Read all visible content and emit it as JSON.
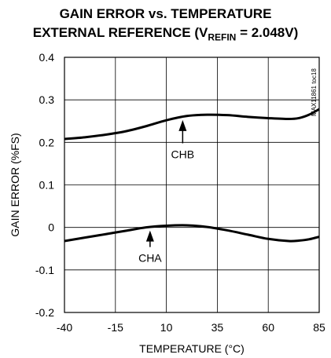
{
  "title_line1": "GAIN ERROR vs. TEMPERATURE",
  "title_line2_pre": "EXTERNAL REFERENCE (V",
  "title_line2_sub": "REFIN",
  "title_line2_post": " = 2.048V)",
  "part_id": "MAX11861 toc18",
  "chart_data": {
    "type": "line",
    "xlabel": "TEMPERATURE (°C)",
    "ylabel": "GAIN ERROR (%FS)",
    "xlim": [
      -40,
      85
    ],
    "ylim": [
      -0.2,
      0.4
    ],
    "xticks": [
      -40,
      -15,
      10,
      35,
      60,
      85
    ],
    "yticks": [
      -0.2,
      -0.1,
      0,
      0.1,
      0.2,
      0.3,
      0.4
    ],
    "ytick_labels": [
      "-0.2",
      "-0.1",
      "0",
      "0.1",
      "0.2",
      "0.3",
      "0.4"
    ],
    "grid": true,
    "series": [
      {
        "name": "CHB",
        "x": [
          -40,
          -30,
          -20,
          -10,
          0,
          10,
          20,
          30,
          40,
          50,
          60,
          70,
          75,
          80,
          85
        ],
        "y": [
          0.208,
          0.212,
          0.218,
          0.226,
          0.238,
          0.252,
          0.262,
          0.265,
          0.264,
          0.26,
          0.257,
          0.255,
          0.257,
          0.265,
          0.278
        ]
      },
      {
        "name": "CHA",
        "x": [
          -40,
          -30,
          -20,
          -10,
          0,
          10,
          20,
          30,
          40,
          50,
          60,
          70,
          75,
          80,
          85
        ],
        "y": [
          -0.032,
          -0.024,
          -0.016,
          -0.008,
          0.0,
          0.004,
          0.005,
          0.001,
          -0.007,
          -0.017,
          -0.027,
          -0.032,
          -0.031,
          -0.028,
          -0.022
        ]
      }
    ],
    "annotations": [
      {
        "text": "CHB",
        "x": 18,
        "y": 0.26,
        "label_y": 0.172
      },
      {
        "text": "CHA",
        "x": 2,
        "y": 0.0,
        "label_y": -0.072
      }
    ]
  }
}
